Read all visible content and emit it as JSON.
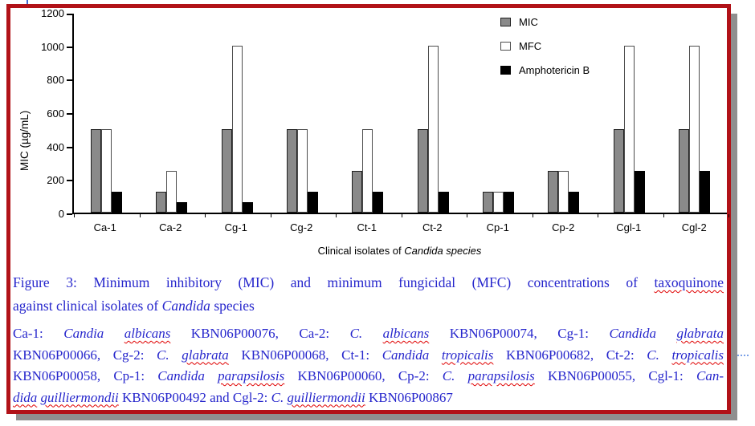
{
  "frame": {
    "border_color": "#b11218",
    "shadow_color": "#8f8f8f"
  },
  "chart_data": {
    "type": "bar",
    "title": "",
    "categories": [
      "Ca-1",
      "Ca-2",
      "Cg-1",
      "Cg-2",
      "Ct-1",
      "Ct-2",
      "Cp-1",
      "Cp-2",
      "Cgl-1",
      "Cgl-2"
    ],
    "series": [
      {
        "name": "MIC",
        "color": "#8a8a8a",
        "border": "#1f1f1f",
        "values": [
          500,
          125,
          500,
          500,
          250,
          500,
          125,
          250,
          500,
          500
        ]
      },
      {
        "name": "MFC",
        "color": "#ffffff",
        "border": "#4d4d4d",
        "values": [
          500,
          250,
          1000,
          500,
          500,
          1000,
          125,
          250,
          1000,
          1000
        ]
      },
      {
        "name": "Amphotericin B",
        "color": "#000000",
        "border": "#000000",
        "values": [
          125,
          62.5,
          62.5,
          125,
          125,
          125,
          125,
          125,
          250,
          250
        ]
      }
    ],
    "ylabel": "MIC (µg/mL)",
    "xlabel_runs": [
      {
        "t": "Clinical isolates of "
      },
      {
        "t": "Candida species",
        "i": true
      }
    ],
    "ylim": [
      0,
      1200
    ],
    "yticks": [
      0,
      200,
      400,
      600,
      800,
      1000,
      1200
    ],
    "grid": false,
    "legend_position": "top-right"
  },
  "caption": {
    "text_color": "#2626cc",
    "squiggle_color": "#e00000",
    "paragraphs": [
      {
        "lines": [
          {
            "justify": true,
            "runs": [
              {
                "t": "Figure 3: Minimum inhibitory (MIC) and minimum fungicidal (MFC) concentrations of "
              },
              {
                "t": "taxoquinone",
                "sq": true
              }
            ]
          },
          {
            "justify": false,
            "runs": [
              {
                "t": "against clinical isolates of "
              },
              {
                "t": "Candida",
                "i": true
              },
              {
                "t": " species"
              }
            ]
          }
        ]
      },
      {
        "lines": [
          {
            "justify": true,
            "runs": [
              {
                "t": "Ca-1: "
              },
              {
                "t": "Candia",
                "i": true
              },
              {
                "t": " "
              },
              {
                "t": "albicans",
                "i": true,
                "sq": true
              },
              {
                "t": " KBN06P00076, Ca-2: "
              },
              {
                "t": "C.",
                "i": true
              },
              {
                "t": " "
              },
              {
                "t": "albicans",
                "i": true,
                "sq": true
              },
              {
                "t": " KBN06P00074, Cg-1: "
              },
              {
                "t": "Candida",
                "i": true
              },
              {
                "t": " "
              },
              {
                "t": "glabrata",
                "i": true,
                "sq": true
              }
            ]
          },
          {
            "justify": true,
            "runs": [
              {
                "t": "KBN06P00066, Cg-2: "
              },
              {
                "t": "C. ",
                "i": true
              },
              {
                "t": "glabrata",
                "i": true,
                "sq": true
              },
              {
                "t": " KBN06P00068, Ct-1: "
              },
              {
                "t": "Candida ",
                "i": true
              },
              {
                "t": "tropicalis",
                "i": true,
                "sq": true
              },
              {
                "t": " KBN06P00682, Ct-2: "
              },
              {
                "t": "C. ",
                "i": true
              },
              {
                "t": "tropicalis",
                "i": true,
                "sq": true
              }
            ]
          },
          {
            "justify": true,
            "runs": [
              {
                "t": "KBN06P00058, Cp-1: "
              },
              {
                "t": "Candida ",
                "i": true
              },
              {
                "t": "parapsilosis",
                "i": true,
                "sq": true
              },
              {
                "t": " KBN06P00060, Cp-2: "
              },
              {
                "t": "C. ",
                "i": true
              },
              {
                "t": "parapsilosis",
                "i": true,
                "sq": true
              },
              {
                "t": " KBN06P00055, Cgl-1: "
              },
              {
                "t": "Can-",
                "i": true
              }
            ]
          },
          {
            "justify": false,
            "runs": [
              {
                "t": "dida",
                "i": true,
                "sq": true
              },
              {
                "t": " ",
                "i": true
              },
              {
                "t": "guilliermondii",
                "i": true,
                "sq": true
              },
              {
                "t": " KBN06P00492 and Cgl-2: "
              },
              {
                "t": "C. ",
                "i": true
              },
              {
                "t": "guilliermondii",
                "i": true,
                "sq": true
              },
              {
                "t": " KBN06P00867"
              }
            ]
          }
        ]
      }
    ]
  }
}
